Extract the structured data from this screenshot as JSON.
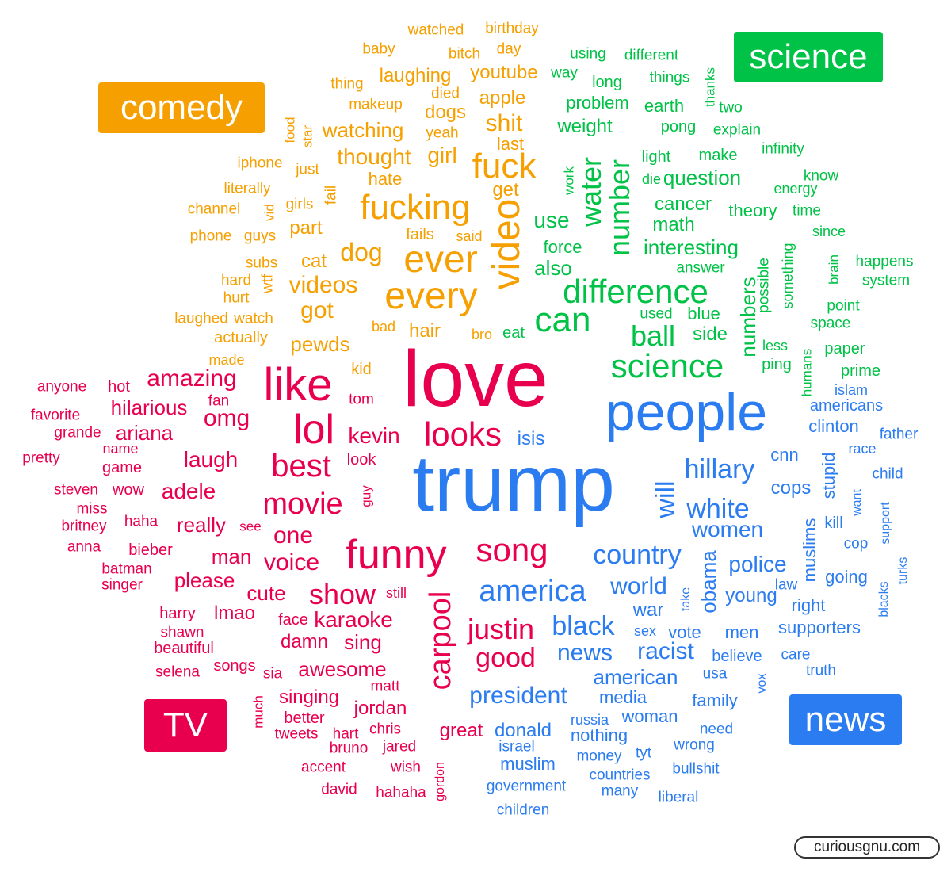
{
  "colors": {
    "comedy": "#f5a000",
    "science": "#00c247",
    "tv": "#e8004e",
    "news": "#2a7cf0"
  },
  "badges": {
    "comedy": "comedy",
    "science": "science",
    "tv": "TV",
    "news": "news"
  },
  "credit": "curiousgnu.com",
  "words": [
    {
      "t": "love",
      "c": "tv",
      "s": 100
    },
    {
      "t": "trump",
      "c": "news",
      "s": 100
    },
    {
      "t": "people",
      "c": "news",
      "s": 68
    },
    {
      "t": "like",
      "c": "tv",
      "s": 58
    },
    {
      "t": "lol",
      "c": "tv",
      "s": 52
    },
    {
      "t": "funny",
      "c": "tv",
      "s": 52
    },
    {
      "t": "ever",
      "c": "comedy",
      "s": 48
    },
    {
      "t": "every",
      "c": "comedy",
      "s": 48
    },
    {
      "t": "video",
      "c": "comedy",
      "s": 48,
      "v": true
    },
    {
      "t": "fucking",
      "c": "comedy",
      "s": 44
    },
    {
      "t": "fuck",
      "c": "comedy",
      "s": 44
    },
    {
      "t": "looks",
      "c": "tv",
      "s": 42
    },
    {
      "t": "song",
      "c": "tv",
      "s": 42
    },
    {
      "t": "difference",
      "c": "science",
      "s": 42
    },
    {
      "t": "can",
      "c": "science",
      "s": 44
    },
    {
      "t": "science",
      "c": "science",
      "s": 42
    },
    {
      "t": "best",
      "c": "tv",
      "s": 40
    },
    {
      "t": "movie",
      "c": "tv",
      "s": 38
    },
    {
      "t": "show",
      "c": "tv",
      "s": 36
    },
    {
      "t": "america",
      "c": "news",
      "s": 38
    },
    {
      "t": "country",
      "c": "news",
      "s": 34
    },
    {
      "t": "hillary",
      "c": "news",
      "s": 34
    },
    {
      "t": "white",
      "c": "news",
      "s": 34
    },
    {
      "t": "black",
      "c": "news",
      "s": 34
    },
    {
      "t": "carpool",
      "c": "tv",
      "s": 38,
      "v": true
    },
    {
      "t": "justin",
      "c": "tv",
      "s": 36
    },
    {
      "t": "good",
      "c": "tv",
      "s": 34
    },
    {
      "t": "water",
      "c": "science",
      "s": 36,
      "v": true
    },
    {
      "t": "number",
      "c": "science",
      "s": 36,
      "v": true
    },
    {
      "t": "ball",
      "c": "science",
      "s": 36
    },
    {
      "t": "will",
      "c": "news",
      "s": 34,
      "v": true
    },
    {
      "t": "amazing",
      "c": "tv",
      "s": 30
    },
    {
      "t": "omg",
      "c": "tv",
      "s": 30
    },
    {
      "t": "kevin",
      "c": "tv",
      "s": 28
    },
    {
      "t": "one",
      "c": "tv",
      "s": 30
    },
    {
      "t": "voice",
      "c": "tv",
      "s": 30
    },
    {
      "t": "dog",
      "c": "comedy",
      "s": 32
    },
    {
      "t": "shit",
      "c": "comedy",
      "s": 30
    },
    {
      "t": "videos",
      "c": "comedy",
      "s": 30
    },
    {
      "t": "got",
      "c": "comedy",
      "s": 30
    },
    {
      "t": "thought",
      "c": "comedy",
      "s": 28
    },
    {
      "t": "girl",
      "c": "comedy",
      "s": 28
    },
    {
      "t": "president",
      "c": "news",
      "s": 30
    },
    {
      "t": "world",
      "c": "news",
      "s": 30
    },
    {
      "t": "news",
      "c": "news",
      "s": 30
    },
    {
      "t": "racist",
      "c": "news",
      "s": 30
    },
    {
      "t": "women",
      "c": "news",
      "s": 28
    },
    {
      "t": "police",
      "c": "news",
      "s": 28
    },
    {
      "t": "obama",
      "c": "news",
      "s": 26,
      "v": true
    },
    {
      "t": "hilarious",
      "c": "tv",
      "s": 26
    },
    {
      "t": "ariana",
      "c": "tv",
      "s": 26
    },
    {
      "t": "laugh",
      "c": "tv",
      "s": 28
    },
    {
      "t": "adele",
      "c": "tv",
      "s": 28
    },
    {
      "t": "really",
      "c": "tv",
      "s": 26
    },
    {
      "t": "man",
      "c": "tv",
      "s": 26
    },
    {
      "t": "please",
      "c": "tv",
      "s": 26
    },
    {
      "t": "cute",
      "c": "tv",
      "s": 26
    },
    {
      "t": "karaoke",
      "c": "tv",
      "s": 28
    },
    {
      "t": "sing",
      "c": "tv",
      "s": 26
    },
    {
      "t": "awesome",
      "c": "tv",
      "s": 26
    },
    {
      "t": "damn",
      "c": "tv",
      "s": 24
    },
    {
      "t": "lmao",
      "c": "tv",
      "s": 24
    },
    {
      "t": "singing",
      "c": "tv",
      "s": 24
    },
    {
      "t": "jordan",
      "c": "tv",
      "s": 24
    },
    {
      "t": "great",
      "c": "tv",
      "s": 24
    },
    {
      "t": "watching",
      "c": "comedy",
      "s": 26
    },
    {
      "t": "pewds",
      "c": "comedy",
      "s": 26
    },
    {
      "t": "hair",
      "c": "comedy",
      "s": 24
    },
    {
      "t": "cat",
      "c": "comedy",
      "s": 24
    },
    {
      "t": "part",
      "c": "comedy",
      "s": 24
    },
    {
      "t": "get",
      "c": "comedy",
      "s": 24
    },
    {
      "t": "apple",
      "c": "comedy",
      "s": 24
    },
    {
      "t": "dogs",
      "c": "comedy",
      "s": 24
    },
    {
      "t": "youtube",
      "c": "comedy",
      "s": 24
    },
    {
      "t": "laughing",
      "c": "comedy",
      "s": 24
    },
    {
      "t": "hate",
      "c": "comedy",
      "s": 22
    },
    {
      "t": "last",
      "c": "comedy",
      "s": 22
    },
    {
      "t": "use",
      "c": "science",
      "s": 28
    },
    {
      "t": "also",
      "c": "science",
      "s": 26
    },
    {
      "t": "interesting",
      "c": "science",
      "s": 26
    },
    {
      "t": "question",
      "c": "science",
      "s": 26
    },
    {
      "t": "weight",
      "c": "science",
      "s": 24
    },
    {
      "t": "problem",
      "c": "science",
      "s": 22
    },
    {
      "t": "math",
      "c": "science",
      "s": 24
    },
    {
      "t": "cancer",
      "c": "science",
      "s": 24
    },
    {
      "t": "earth",
      "c": "science",
      "s": 22
    },
    {
      "t": "force",
      "c": "science",
      "s": 22
    },
    {
      "t": "side",
      "c": "science",
      "s": 24
    },
    {
      "t": "numbers",
      "c": "science",
      "s": 26,
      "v": true
    },
    {
      "t": "theory",
      "c": "science",
      "s": 22
    },
    {
      "t": "blue",
      "c": "science",
      "s": 22
    },
    {
      "t": "american",
      "c": "news",
      "s": 26
    },
    {
      "t": "war",
      "c": "news",
      "s": 24
    },
    {
      "t": "vote",
      "c": "news",
      "s": 22
    },
    {
      "t": "men",
      "c": "news",
      "s": 22
    },
    {
      "t": "young",
      "c": "news",
      "s": 24
    },
    {
      "t": "cops",
      "c": "news",
      "s": 24
    },
    {
      "t": "clinton",
      "c": "news",
      "s": 22
    },
    {
      "t": "cnn",
      "c": "news",
      "s": 22
    },
    {
      "t": "isis",
      "c": "news",
      "s": 24
    },
    {
      "t": "muslims",
      "c": "news",
      "s": 22,
      "v": true
    },
    {
      "t": "stupid",
      "c": "news",
      "s": 22,
      "v": true
    },
    {
      "t": "donald",
      "c": "news",
      "s": 24
    },
    {
      "t": "media",
      "c": "news",
      "s": 22
    },
    {
      "t": "nothing",
      "c": "news",
      "s": 22
    },
    {
      "t": "muslim",
      "c": "news",
      "s": 22
    },
    {
      "t": "family",
      "c": "news",
      "s": 22
    },
    {
      "t": "woman",
      "c": "news",
      "s": 22
    },
    {
      "t": "supporters",
      "c": "news",
      "s": 22
    },
    {
      "t": "believe",
      "c": "news",
      "s": 20
    },
    {
      "t": "right",
      "c": "news",
      "s": 22
    },
    {
      "t": "going",
      "c": "news",
      "s": 22
    },
    {
      "t": "bitch",
      "c": "comedy",
      "s": 19
    },
    {
      "t": "day",
      "c": "comedy",
      "s": 19
    },
    {
      "t": "died",
      "c": "comedy",
      "s": 19
    },
    {
      "t": "baby",
      "c": "comedy",
      "s": 19
    },
    {
      "t": "watched",
      "c": "comedy",
      "s": 19
    },
    {
      "t": "birthday",
      "c": "comedy",
      "s": 19
    },
    {
      "t": "thing",
      "c": "comedy",
      "s": 19
    },
    {
      "t": "makeup",
      "c": "comedy",
      "s": 19
    },
    {
      "t": "yeah",
      "c": "comedy",
      "s": 19
    },
    {
      "t": "food",
      "c": "comedy",
      "s": 17,
      "v": true
    },
    {
      "t": "star",
      "c": "comedy",
      "s": 17,
      "v": true
    },
    {
      "t": "iphone",
      "c": "comedy",
      "s": 19
    },
    {
      "t": "just",
      "c": "comedy",
      "s": 19
    },
    {
      "t": "literally",
      "c": "comedy",
      "s": 19
    },
    {
      "t": "fail",
      "c": "comedy",
      "s": 19,
      "v": true
    },
    {
      "t": "channel",
      "c": "comedy",
      "s": 19
    },
    {
      "t": "girls",
      "c": "comedy",
      "s": 19
    },
    {
      "t": "vid",
      "c": "comedy",
      "s": 17,
      "v": true
    },
    {
      "t": "phone",
      "c": "comedy",
      "s": 19
    },
    {
      "t": "guys",
      "c": "comedy",
      "s": 19
    },
    {
      "t": "fails",
      "c": "comedy",
      "s": 20
    },
    {
      "t": "said",
      "c": "comedy",
      "s": 18
    },
    {
      "t": "subs",
      "c": "comedy",
      "s": 19
    },
    {
      "t": "hard",
      "c": "comedy",
      "s": 19
    },
    {
      "t": "wtf",
      "c": "comedy",
      "s": 19,
      "v": true
    },
    {
      "t": "hurt",
      "c": "comedy",
      "s": 19
    },
    {
      "t": "laughed",
      "c": "comedy",
      "s": 19
    },
    {
      "t": "watch",
      "c": "comedy",
      "s": 19
    },
    {
      "t": "actually",
      "c": "comedy",
      "s": 20
    },
    {
      "t": "bad",
      "c": "comedy",
      "s": 18
    },
    {
      "t": "bro",
      "c": "comedy",
      "s": 18
    },
    {
      "t": "made",
      "c": "comedy",
      "s": 18
    },
    {
      "t": "kid",
      "c": "comedy",
      "s": 20
    },
    {
      "t": "eat",
      "c": "science",
      "s": 20
    },
    {
      "t": "using",
      "c": "science",
      "s": 19
    },
    {
      "t": "different",
      "c": "science",
      "s": 19
    },
    {
      "t": "way",
      "c": "science",
      "s": 19
    },
    {
      "t": "long",
      "c": "science",
      "s": 20
    },
    {
      "t": "things",
      "c": "science",
      "s": 19
    },
    {
      "t": "thanks",
      "c": "science",
      "s": 17,
      "v": true
    },
    {
      "t": "two",
      "c": "science",
      "s": 19
    },
    {
      "t": "explain",
      "c": "science",
      "s": 19
    },
    {
      "t": "pong",
      "c": "science",
      "s": 20
    },
    {
      "t": "light",
      "c": "science",
      "s": 20
    },
    {
      "t": "make",
      "c": "science",
      "s": 20
    },
    {
      "t": "infinity",
      "c": "science",
      "s": 19
    },
    {
      "t": "work",
      "c": "science",
      "s": 17,
      "v": true
    },
    {
      "t": "die",
      "c": "science",
      "s": 18
    },
    {
      "t": "know",
      "c": "science",
      "s": 19
    },
    {
      "t": "energy",
      "c": "science",
      "s": 18
    },
    {
      "t": "time",
      "c": "science",
      "s": 19
    },
    {
      "t": "since",
      "c": "science",
      "s": 18
    },
    {
      "t": "happens",
      "c": "science",
      "s": 19
    },
    {
      "t": "brain",
      "c": "science",
      "s": 17,
      "v": true
    },
    {
      "t": "system",
      "c": "science",
      "s": 19
    },
    {
      "t": "answer",
      "c": "science",
      "s": 19
    },
    {
      "t": "possible",
      "c": "science",
      "s": 19,
      "v": true
    },
    {
      "t": "something",
      "c": "science",
      "s": 18,
      "v": true
    },
    {
      "t": "used",
      "c": "science",
      "s": 19
    },
    {
      "t": "point",
      "c": "science",
      "s": 19
    },
    {
      "t": "space",
      "c": "science",
      "s": 19
    },
    {
      "t": "less",
      "c": "science",
      "s": 18
    },
    {
      "t": "ping",
      "c": "science",
      "s": 20
    },
    {
      "t": "paper",
      "c": "science",
      "s": 20
    },
    {
      "t": "prime",
      "c": "science",
      "s": 20
    },
    {
      "t": "humans",
      "c": "science",
      "s": 17,
      "v": true
    },
    {
      "t": "anyone",
      "c": "tv",
      "s": 19
    },
    {
      "t": "hot",
      "c": "tv",
      "s": 20
    },
    {
      "t": "favorite",
      "c": "tv",
      "s": 19
    },
    {
      "t": "fan",
      "c": "tv",
      "s": 19
    },
    {
      "t": "tom",
      "c": "tv",
      "s": 19
    },
    {
      "t": "grande",
      "c": "tv",
      "s": 19
    },
    {
      "t": "name",
      "c": "tv",
      "s": 18
    },
    {
      "t": "pretty",
      "c": "tv",
      "s": 19
    },
    {
      "t": "game",
      "c": "tv",
      "s": 20
    },
    {
      "t": "look",
      "c": "tv",
      "s": 20
    },
    {
      "t": "steven",
      "c": "tv",
      "s": 19
    },
    {
      "t": "wow",
      "c": "tv",
      "s": 20
    },
    {
      "t": "guy",
      "c": "tv",
      "s": 17,
      "v": true
    },
    {
      "t": "miss",
      "c": "tv",
      "s": 19
    },
    {
      "t": "britney",
      "c": "tv",
      "s": 19
    },
    {
      "t": "haha",
      "c": "tv",
      "s": 19
    },
    {
      "t": "see",
      "c": "tv",
      "s": 17
    },
    {
      "t": "anna",
      "c": "tv",
      "s": 19
    },
    {
      "t": "bieber",
      "c": "tv",
      "s": 20
    },
    {
      "t": "batman",
      "c": "tv",
      "s": 19
    },
    {
      "t": "singer",
      "c": "tv",
      "s": 19
    },
    {
      "t": "still",
      "c": "tv",
      "s": 18
    },
    {
      "t": "harry",
      "c": "tv",
      "s": 20
    },
    {
      "t": "face",
      "c": "tv",
      "s": 20
    },
    {
      "t": "shawn",
      "c": "tv",
      "s": 19
    },
    {
      "t": "beautiful",
      "c": "tv",
      "s": 20
    },
    {
      "t": "songs",
      "c": "tv",
      "s": 20
    },
    {
      "t": "sia",
      "c": "tv",
      "s": 19
    },
    {
      "t": "selena",
      "c": "tv",
      "s": 19
    },
    {
      "t": "matt",
      "c": "tv",
      "s": 19
    },
    {
      "t": "much",
      "c": "tv",
      "s": 17,
      "v": true
    },
    {
      "t": "better",
      "c": "tv",
      "s": 20
    },
    {
      "t": "hart",
      "c": "tv",
      "s": 19
    },
    {
      "t": "tweets",
      "c": "tv",
      "s": 19
    },
    {
      "t": "chris",
      "c": "tv",
      "s": 19
    },
    {
      "t": "bruno",
      "c": "tv",
      "s": 19
    },
    {
      "t": "jared",
      "c": "tv",
      "s": 19
    },
    {
      "t": "accent",
      "c": "tv",
      "s": 19
    },
    {
      "t": "wish",
      "c": "tv",
      "s": 19
    },
    {
      "t": "gordon",
      "c": "tv",
      "s": 16,
      "v": true
    },
    {
      "t": "david",
      "c": "tv",
      "s": 19
    },
    {
      "t": "hahaha",
      "c": "tv",
      "s": 19
    },
    {
      "t": "islam",
      "c": "news",
      "s": 18
    },
    {
      "t": "americans",
      "c": "news",
      "s": 20
    },
    {
      "t": "father",
      "c": "news",
      "s": 19
    },
    {
      "t": "race",
      "c": "news",
      "s": 18
    },
    {
      "t": "child",
      "c": "news",
      "s": 19
    },
    {
      "t": "want",
      "c": "news",
      "s": 16,
      "v": true
    },
    {
      "t": "kill",
      "c": "news",
      "s": 20
    },
    {
      "t": "support",
      "c": "news",
      "s": 16,
      "v": true
    },
    {
      "t": "cop",
      "c": "news",
      "s": 19
    },
    {
      "t": "turks",
      "c": "news",
      "s": 16,
      "v": true
    },
    {
      "t": "blacks",
      "c": "news",
      "s": 16,
      "v": true
    },
    {
      "t": "law",
      "c": "news",
      "s": 19
    },
    {
      "t": "take",
      "c": "news",
      "s": 16,
      "v": true
    },
    {
      "t": "sex",
      "c": "news",
      "s": 18
    },
    {
      "t": "care",
      "c": "news",
      "s": 19
    },
    {
      "t": "truth",
      "c": "news",
      "s": 19
    },
    {
      "t": "usa",
      "c": "news",
      "s": 19
    },
    {
      "t": "vox",
      "c": "news",
      "s": 16,
      "v": true
    },
    {
      "t": "russia",
      "c": "news",
      "s": 18
    },
    {
      "t": "need",
      "c": "news",
      "s": 19
    },
    {
      "t": "israel",
      "c": "news",
      "s": 19
    },
    {
      "t": "tyt",
      "c": "news",
      "s": 19
    },
    {
      "t": "wrong",
      "c": "news",
      "s": 19
    },
    {
      "t": "money",
      "c": "news",
      "s": 19
    },
    {
      "t": "bullshit",
      "c": "news",
      "s": 19
    },
    {
      "t": "countries",
      "c": "news",
      "s": 19
    },
    {
      "t": "government",
      "c": "news",
      "s": 19
    },
    {
      "t": "many",
      "c": "news",
      "s": 19
    },
    {
      "t": "liberal",
      "c": "news",
      "s": 19
    },
    {
      "t": "children",
      "c": "news",
      "s": 19
    }
  ]
}
